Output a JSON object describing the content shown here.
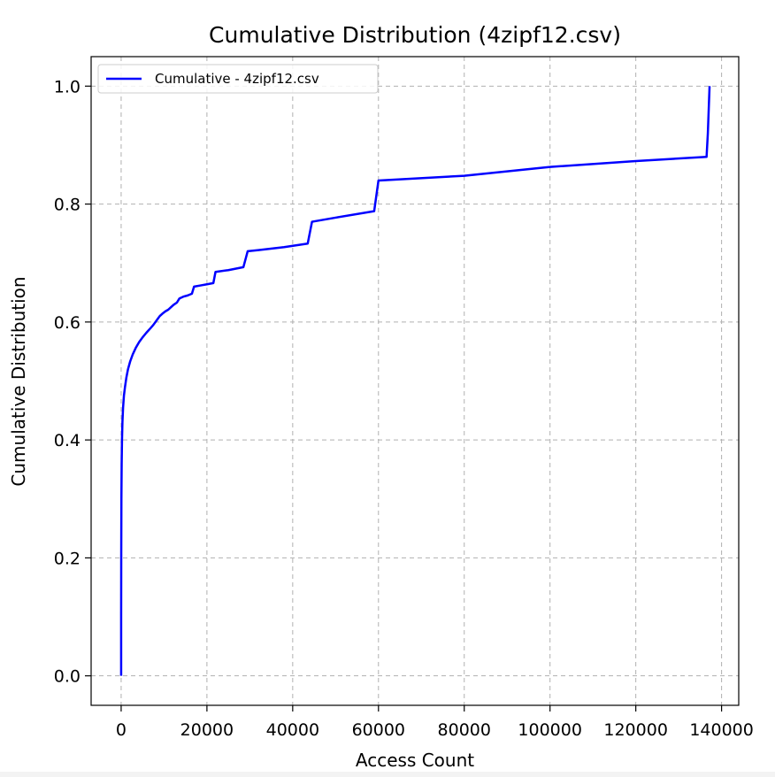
{
  "chart_data": {
    "type": "line",
    "title": "Cumulative Distribution (4zipf12.csv)",
    "xlabel": "Access Count",
    "ylabel": "Cumulative Distribution",
    "xlim": [
      -7000,
      144000
    ],
    "ylim": [
      -0.05,
      1.05
    ],
    "xticks": [
      0,
      20000,
      40000,
      60000,
      80000,
      100000,
      120000,
      140000
    ],
    "yticks": [
      0.0,
      0.2,
      0.4,
      0.6,
      0.8,
      1.0
    ],
    "xtick_labels": [
      "0",
      "20000",
      "40000",
      "60000",
      "80000",
      "100000",
      "120000",
      "140000"
    ],
    "ytick_labels": [
      "0.0",
      "0.2",
      "0.4",
      "0.6",
      "0.8",
      "1.0"
    ],
    "grid": true,
    "legend_position": "top-left",
    "series": [
      {
        "name": "Cumulative - 4zipf12.csv",
        "color": "#0000ff",
        "x": [
          0,
          0,
          20,
          60,
          120,
          200,
          300,
          450,
          650,
          900,
          1200,
          1600,
          2100,
          2700,
          3400,
          4200,
          5000,
          5900,
          6900,
          7500,
          8000,
          8500,
          9000,
          9600,
          10300,
          11000,
          11600,
          12200,
          13000,
          13600,
          14500,
          15500,
          16500,
          17000,
          18500,
          20000,
          21500,
          22000,
          25000,
          28500,
          29500,
          32000,
          38000,
          43500,
          44500,
          50000,
          59000,
          60000,
          80000,
          100000,
          120000,
          136500,
          136800,
          137000,
          137200
        ],
        "y": [
          0.0,
          0.1,
          0.2,
          0.3,
          0.36,
          0.4,
          0.43,
          0.455,
          0.475,
          0.49,
          0.505,
          0.52,
          0.533,
          0.545,
          0.556,
          0.566,
          0.574,
          0.582,
          0.59,
          0.595,
          0.6,
          0.605,
          0.61,
          0.614,
          0.618,
          0.621,
          0.625,
          0.629,
          0.633,
          0.64,
          0.643,
          0.645,
          0.648,
          0.66,
          0.662,
          0.664,
          0.666,
          0.685,
          0.688,
          0.693,
          0.72,
          0.722,
          0.727,
          0.733,
          0.77,
          0.777,
          0.788,
          0.84,
          0.848,
          0.863,
          0.873,
          0.88,
          0.92,
          0.96,
          1.0
        ]
      }
    ]
  }
}
